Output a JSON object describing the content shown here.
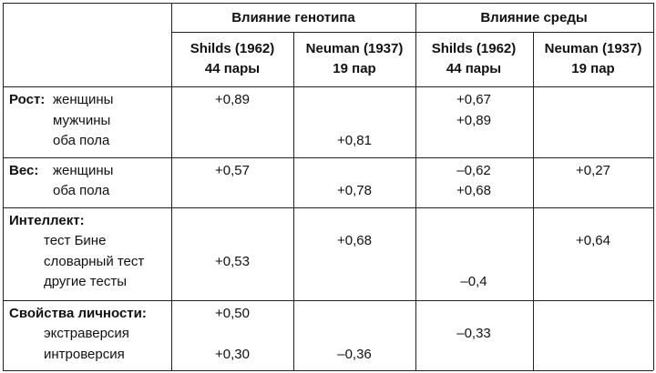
{
  "header": {
    "groups": [
      "Влияние генотипа",
      "Влияние среды"
    ],
    "columns": [
      {
        "title": "Shilds (1962)",
        "subtitle": "44 пары"
      },
      {
        "title": "Neuman (1937)",
        "subtitle": "19 пар"
      },
      {
        "title": "Shilds (1962)",
        "subtitle": "44 пары"
      },
      {
        "title": "Neuman (1937)",
        "subtitle": "19 пар"
      }
    ]
  },
  "sections": [
    {
      "heading": "Рост:",
      "lines": [
        [
          "женщины",
          "+0,89",
          null,
          "+0,67",
          null
        ],
        [
          "мужчины",
          null,
          null,
          "+0,89",
          null
        ],
        [
          "оба пола",
          null,
          "+0,81",
          null,
          null
        ]
      ]
    },
    {
      "heading": "Вес:",
      "lines": [
        [
          "женщины",
          "+0,57",
          null,
          "–0,62",
          "+0,27"
        ],
        [
          "оба пола",
          null,
          "+0,78",
          "+0,68",
          null
        ]
      ]
    },
    {
      "heading": "Интеллект:",
      "lines": [
        [
          null,
          null,
          null,
          null,
          null
        ],
        [
          "тест Бине",
          null,
          "+0,68",
          null,
          "+0,64"
        ],
        [
          "словарный тест",
          "+0,53",
          null,
          null,
          null
        ],
        [
          "другие тесты",
          null,
          null,
          "–0,4",
          null
        ]
      ]
    },
    {
      "heading": "Свойства личности:",
      "lines": [
        [
          null,
          "+0,50",
          null,
          null,
          null
        ],
        [
          "экстраверсия",
          null,
          null,
          "–0,33",
          null
        ],
        [
          "интроверсия",
          "+0,30",
          "–0,36",
          null,
          null
        ]
      ]
    }
  ]
}
